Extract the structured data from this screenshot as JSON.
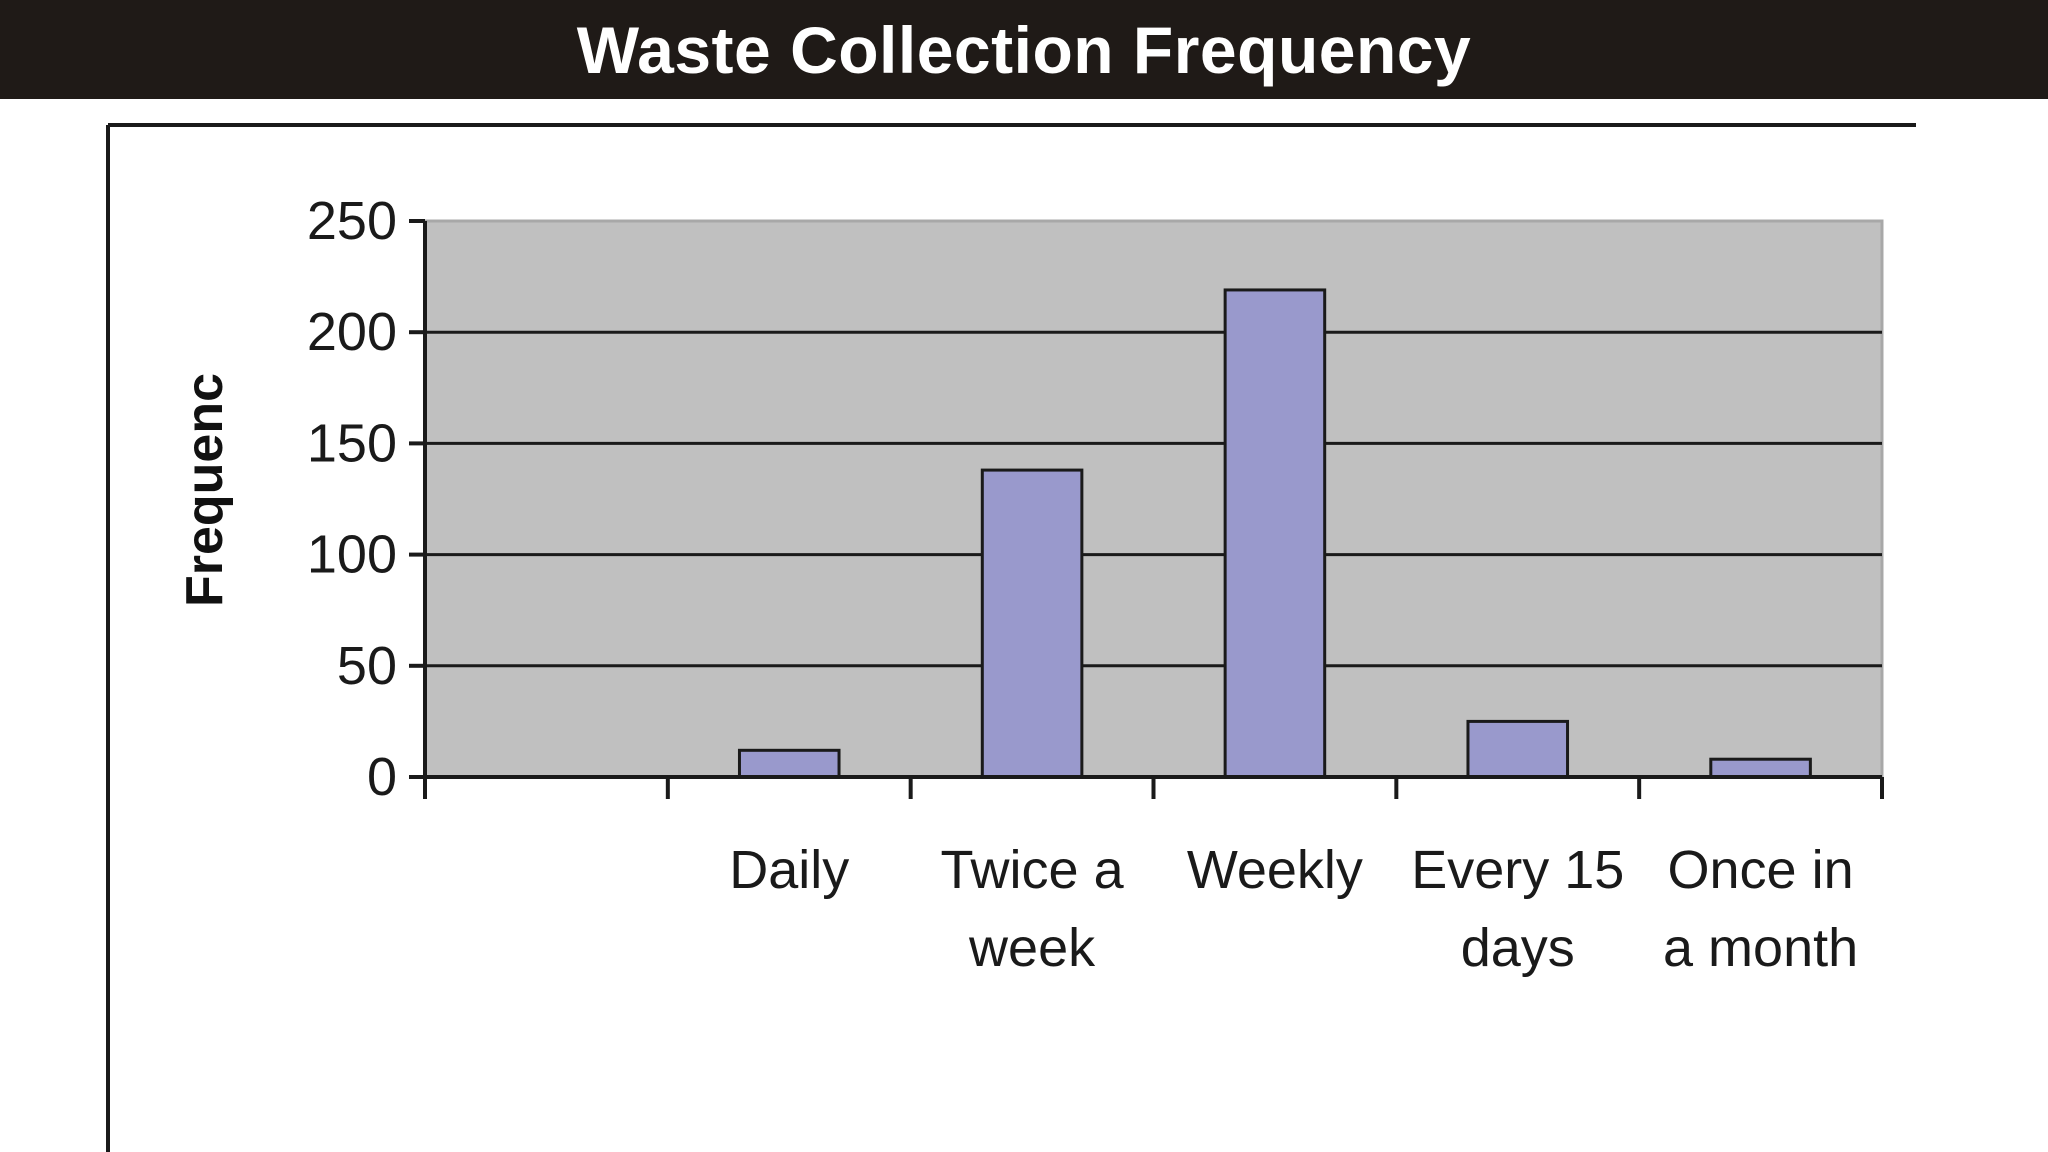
{
  "header": {
    "title": "Waste Collection Frequency"
  },
  "chart_data": {
    "type": "bar",
    "title": "Waste Collection Frequency",
    "xlabel": "",
    "ylabel": "Frequenc",
    "categories": [
      "",
      "Daily",
      "Twice a week",
      "Weekly",
      "Every 15 days",
      "Once in a month"
    ],
    "category_lines": [
      [],
      [
        "Daily"
      ],
      [
        "Twice a",
        "week"
      ],
      [
        "Weekly"
      ],
      [
        "Every 15",
        "days"
      ],
      [
        "Once in",
        "a month"
      ]
    ],
    "values": [
      0,
      12,
      138,
      219,
      25,
      8
    ],
    "ylim": [
      0,
      250
    ],
    "yticks": [
      0,
      50,
      100,
      150,
      200,
      250
    ],
    "grid": true,
    "legend": "none",
    "colors": {
      "plot_background": "#c0c0c0",
      "bar_fill": "#9999cc",
      "bar_stroke": "#1a1a1a",
      "gridline": "#1a1a1a",
      "header_background": "#1f1a17"
    }
  }
}
